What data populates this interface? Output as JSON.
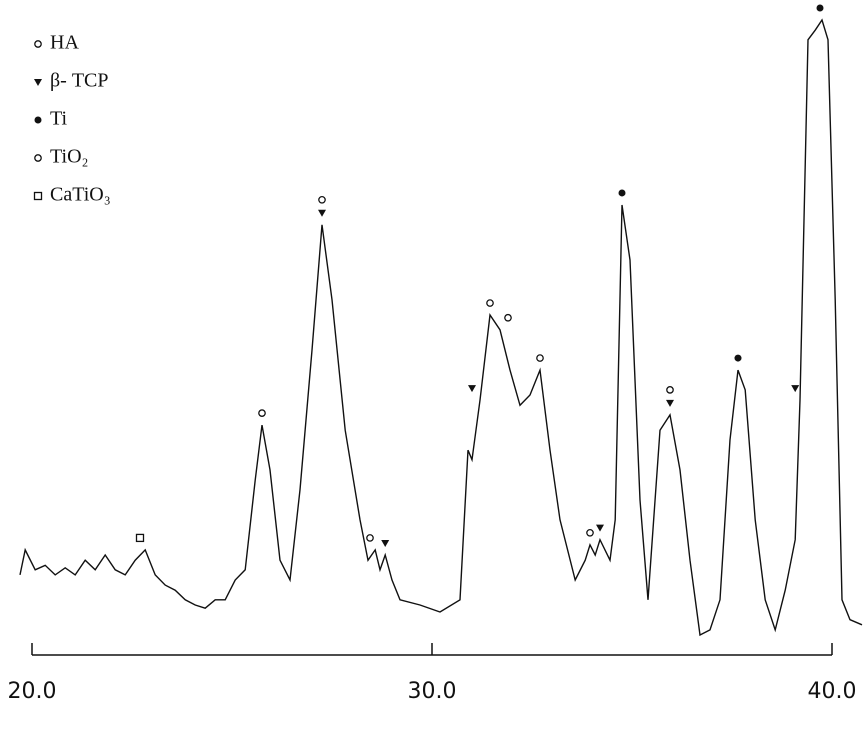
{
  "chart_data": {
    "type": "line",
    "x": [
      19.7,
      19.83,
      20.08,
      20.33,
      20.58,
      20.83,
      21.08,
      21.33,
      21.58,
      21.83,
      22.08,
      22.33,
      22.58,
      22.83,
      23.08,
      23.33,
      23.58,
      23.83,
      24.08,
      24.33,
      24.58,
      24.83,
      25.08,
      25.33,
      25.58,
      25.75,
      25.95,
      26.2,
      26.45,
      26.7,
      27.0,
      27.25,
      27.5,
      27.83,
      28.2,
      28.4,
      28.58,
      28.7,
      28.83,
      29.0,
      29.2,
      29.7,
      30.2,
      30.7,
      30.9,
      31.0,
      31.2,
      31.45,
      31.7,
      31.95,
      32.2,
      32.45,
      32.7,
      32.95,
      33.2,
      33.58,
      33.83,
      33.95,
      34.08,
      34.2,
      34.45,
      34.58,
      34.75,
      34.95,
      35.2,
      35.4,
      35.7,
      35.95,
      36.2,
      36.45,
      36.7,
      36.95,
      37.2,
      37.45,
      37.65,
      37.83,
      38.08,
      38.33,
      38.58,
      38.83,
      39.08,
      39.2,
      39.4,
      39.58,
      39.75,
      39.9,
      40.08,
      40.25,
      40.45,
      40.75
    ],
    "values": [
      13.3,
      17.2,
      14.1,
      14.8,
      13.3,
      14.4,
      13.3,
      15.6,
      14.1,
      16.4,
      14.1,
      13.3,
      15.6,
      17.2,
      13.3,
      11.7,
      10.9,
      9.4,
      8.6,
      8.1,
      9.4,
      9.4,
      12.5,
      14.1,
      28.1,
      36.7,
      29.7,
      15.6,
      12.5,
      26.6,
      48.4,
      68.0,
      56.3,
      35.9,
      21.9,
      15.6,
      17.2,
      14.1,
      16.4,
      12.5,
      9.4,
      8.6,
      7.5,
      9.4,
      32.8,
      31.3,
      40.6,
      53.9,
      51.6,
      45.3,
      39.8,
      41.4,
      45.3,
      32.8,
      21.9,
      12.5,
      15.6,
      18.0,
      16.4,
      18.8,
      15.6,
      21.9,
      71.1,
      62.5,
      25.0,
      9.4,
      35.9,
      38.3,
      29.7,
      15.6,
      3.9,
      4.7,
      9.4,
      34.4,
      45.3,
      42.2,
      21.9,
      9.4,
      4.7,
      10.9,
      18.8,
      40.6,
      96.9,
      98.4,
      100,
      96.9,
      56.3,
      9.4,
      6.3,
      5.5
    ],
    "color": "#111111",
    "xlim": [
      19.7,
      40.8
    ],
    "ylim": [
      0,
      100
    ],
    "xticks": [
      {
        "value": 20,
        "label": "20.0"
      },
      {
        "value": 30,
        "label": "30.0"
      },
      {
        "value": 40,
        "label": "40.0"
      }
    ],
    "peaks": [
      {
        "name": "HA",
        "marker": "open-circle",
        "x": [
          25.75,
          27.25,
          31.45,
          31.9,
          32.7
        ]
      },
      {
        "name": "β- TCP",
        "marker": "triangle",
        "x": [
          27.25,
          28.83,
          31.0,
          34.2,
          35.95,
          39.08
        ]
      },
      {
        "name": "Ti",
        "marker": "filled-circle",
        "x": [
          34.75,
          37.65,
          39.7
        ]
      },
      {
        "name": "TiO₂",
        "marker": "open-circle",
        "x": [
          28.45,
          33.95,
          35.95
        ]
      },
      {
        "name": "CaTiO₃",
        "marker": "square",
        "x": [
          22.7
        ]
      }
    ]
  }
}
